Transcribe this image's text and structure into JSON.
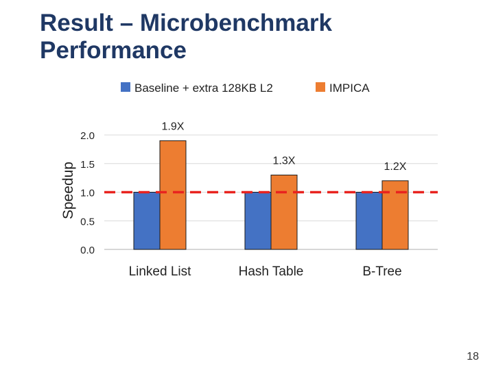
{
  "slide": {
    "title": "Result – Microbenchmark\nPerformance",
    "page_number": "18"
  },
  "colors": {
    "title": "#1f3864",
    "baseline": "#4472c4",
    "impica": "#ed7d31",
    "reference_line": "#e8231f",
    "grid": "#d9d9d9",
    "axis_text": "#222222"
  },
  "chart_data": {
    "type": "bar",
    "categories": [
      "Linked List",
      "Hash Table",
      "B-Tree"
    ],
    "series": [
      {
        "name": "Baseline + extra 128KB L2",
        "values": [
          1.0,
          1.0,
          1.0
        ],
        "color": "#4472c4"
      },
      {
        "name": "IMPICA",
        "values": [
          1.9,
          1.3,
          1.2
        ],
        "color": "#ed7d31"
      }
    ],
    "annotations": [
      "1.9X",
      "1.3X",
      "1.2X"
    ],
    "ylabel": "Speedup",
    "xlabel": "",
    "ylim": [
      0.0,
      2.0
    ],
    "yticks": [
      0.0,
      0.5,
      1.0,
      1.5,
      2.0
    ],
    "ytick_labels": [
      "0.0",
      "0.5",
      "1.0",
      "1.5",
      "2.0"
    ],
    "reference_line": 1.0,
    "grid": true,
    "legend_position": "top"
  }
}
